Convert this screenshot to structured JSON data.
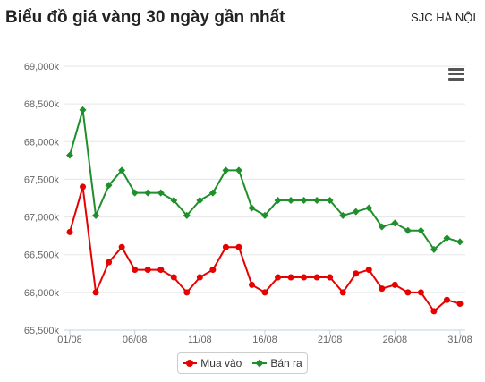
{
  "header": {
    "title": "Biểu đồ giá vàng 30 ngày gần nhất",
    "region": "SJC HÀ NỘI"
  },
  "menu": {
    "icon": "hamburger-menu-icon"
  },
  "chart_data": {
    "type": "line",
    "title": "Biểu đồ giá vàng 30 ngày gần nhất",
    "subtitle": "SJC HÀ NỘI",
    "xlabel": "",
    "ylabel": "",
    "ylim": [
      65500,
      69000
    ],
    "yticks": [
      "65,500k",
      "66,000k",
      "66,500k",
      "67,000k",
      "67,500k",
      "68,000k",
      "68,500k",
      "69,000k"
    ],
    "y_tick_values": [
      65500,
      66000,
      66500,
      67000,
      67500,
      68000,
      68500,
      69000
    ],
    "xticks": [
      "01/08",
      "06/08",
      "11/08",
      "16/08",
      "21/08",
      "26/08",
      "31/08"
    ],
    "x": [
      "01/08",
      "02/08",
      "03/08",
      "04/08",
      "05/08",
      "06/08",
      "07/08",
      "08/08",
      "09/08",
      "10/08",
      "11/08",
      "12/08",
      "13/08",
      "14/08",
      "15/08",
      "16/08",
      "17/08",
      "18/08",
      "19/08",
      "20/08",
      "21/08",
      "22/08",
      "23/08",
      "24/08",
      "25/08",
      "26/08",
      "27/08",
      "28/08",
      "29/08",
      "30/08",
      "31/08"
    ],
    "grid": true,
    "legend_position": "bottom",
    "series": [
      {
        "name": "Mua vào",
        "color": "#e60000",
        "marker": "circle",
        "values": [
          66800,
          67400,
          66000,
          66400,
          66600,
          66300,
          66300,
          66300,
          66200,
          66000,
          66200,
          66300,
          66600,
          66600,
          66100,
          66000,
          66200,
          66200,
          66200,
          66200,
          66200,
          66000,
          66250,
          66300,
          66050,
          66100,
          66000,
          66000,
          65750,
          65900,
          65850
        ]
      },
      {
        "name": "Bán ra",
        "color": "#1e8f2a",
        "marker": "diamond",
        "values": [
          67820,
          68420,
          67020,
          67420,
          67620,
          67320,
          67320,
          67320,
          67220,
          67020,
          67220,
          67320,
          67620,
          67620,
          67120,
          67020,
          67220,
          67220,
          67220,
          67220,
          67220,
          67020,
          67070,
          67120,
          66870,
          66920,
          66820,
          66820,
          66570,
          66720,
          66670
        ]
      }
    ]
  },
  "legend": {
    "items": [
      {
        "label": "Mua vào",
        "color": "#e60000"
      },
      {
        "label": "Bán ra",
        "color": "#1e8f2a"
      }
    ]
  }
}
